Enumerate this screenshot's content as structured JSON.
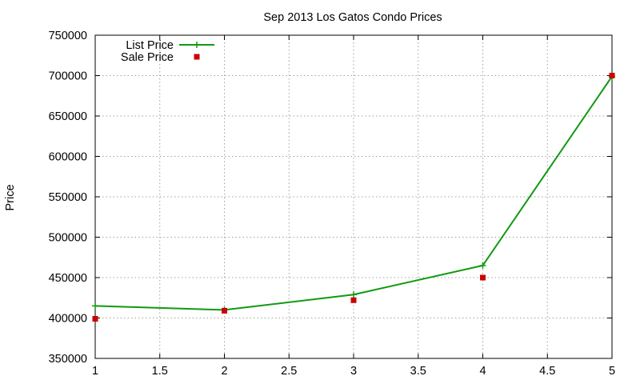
{
  "chart_data": {
    "type": "line",
    "title": "Sep 2013 Los Gatos Condo Prices",
    "xlabel": "",
    "ylabel": "Price",
    "xlim": [
      1,
      5
    ],
    "ylim": [
      350000,
      750000
    ],
    "x_ticks": [
      "1",
      "1.5",
      "2",
      "2.5",
      "3",
      "3.5",
      "4",
      "4.5",
      "5"
    ],
    "y_ticks": [
      "350000",
      "400000",
      "450000",
      "500000",
      "550000",
      "600000",
      "650000",
      "700000",
      "750000"
    ],
    "grid": true,
    "legend_position": "top-left",
    "series": [
      {
        "name": "List Price",
        "style": "line-with-plus-markers",
        "color": "#119911",
        "x": [
          1,
          2,
          3,
          4,
          5
        ],
        "values": [
          415000,
          410000,
          429000,
          465000,
          699000
        ]
      },
      {
        "name": "Sale Price",
        "style": "square-markers",
        "color": "#cc0000",
        "x": [
          1,
          2,
          3,
          4,
          5
        ],
        "values": [
          399000,
          409000,
          422000,
          450000,
          700000
        ]
      }
    ]
  }
}
